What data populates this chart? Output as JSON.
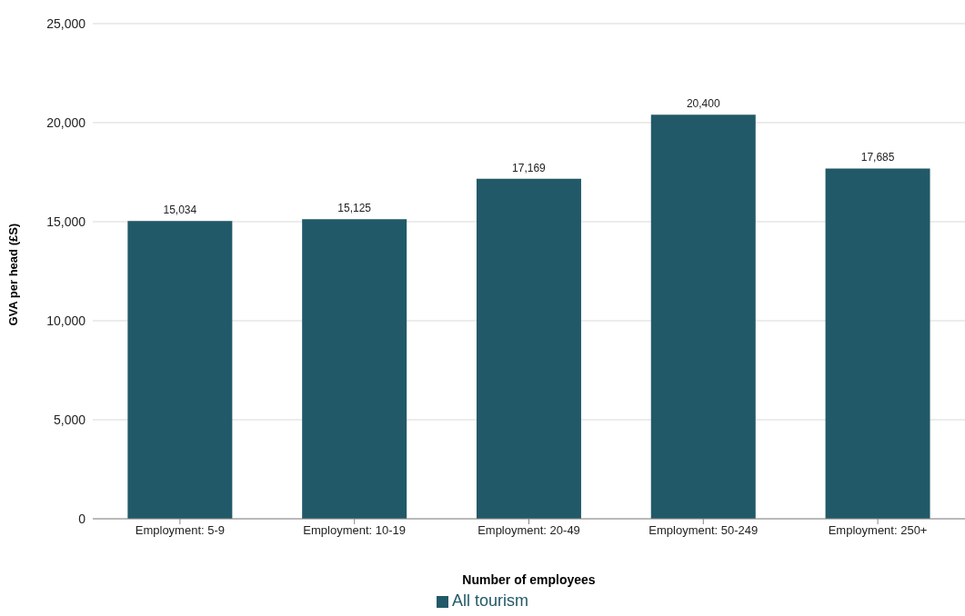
{
  "chart_data": {
    "type": "bar",
    "xlabel": "Number of employees",
    "ylabel": "GVA per head (£S)",
    "categories": [
      "Employment: 5-9",
      "Employment: 10-19",
      "Employment: 20-49",
      "Employment: 50-249",
      "Employment: 250+"
    ],
    "series": [
      {
        "name": "All tourism",
        "color": "#225968",
        "values": [
          15034,
          15125,
          17169,
          20400,
          17685
        ],
        "value_labels": [
          "15,034",
          "15,125",
          "17,169",
          "20,400",
          "17,685"
        ]
      }
    ],
    "ylim": [
      0,
      25000
    ],
    "yticks": [
      0,
      {
        "value": 5000,
        "label": "5,000"
      },
      {
        "value": 10000,
        "label": "10,000"
      },
      {
        "value": 15000,
        "label": "15,000"
      },
      {
        "value": 20000,
        "label": "20,000"
      },
      {
        "value": 25000,
        "label": "25,000"
      }
    ],
    "grid": "y",
    "legend": "bottom"
  }
}
